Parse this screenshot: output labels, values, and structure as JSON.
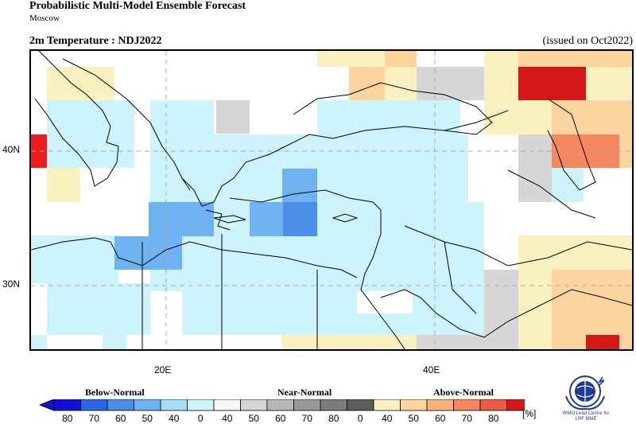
{
  "header": {
    "title": "Probabilistic Multi-Model Ensemble Forecast",
    "center": "Moscow",
    "variable_period": "2m Temperature : NDJ2022",
    "issued": "(issued on Oct2022)"
  },
  "map": {
    "lon_labels": [
      "20E",
      "40E"
    ],
    "lat_labels": [
      "40N",
      "30N"
    ]
  },
  "legend": {
    "below_label": "Below-Normal",
    "near_label": "Near-Normal",
    "above_label": "Above-Normal",
    "below_colors": [
      "#1010d8",
      "#2a66e8",
      "#4a8ee8",
      "#6fb2f2",
      "#a6dcf6",
      "#ccf4fa"
    ],
    "near_colors": [
      "#f6f6f6",
      "#d6d6d6",
      "#b8b8b8",
      "#9a9a9a",
      "#7c7c7c",
      "#5c5c5c"
    ],
    "above_colors": [
      "#fbf0c0",
      "#fbd4a0",
      "#f8b07c",
      "#f38860",
      "#ec5c42",
      "#d41818"
    ],
    "tick_labels": [
      "80",
      "70",
      "60",
      "50",
      "40",
      "0",
      "40",
      "50",
      "60",
      "70",
      "80",
      "0",
      "40",
      "50",
      "60",
      "70",
      "80"
    ],
    "unit": "[%]"
  },
  "logo": {
    "text_line1": "WMO Lead Centre for",
    "text_line2": "LRF MME"
  }
}
